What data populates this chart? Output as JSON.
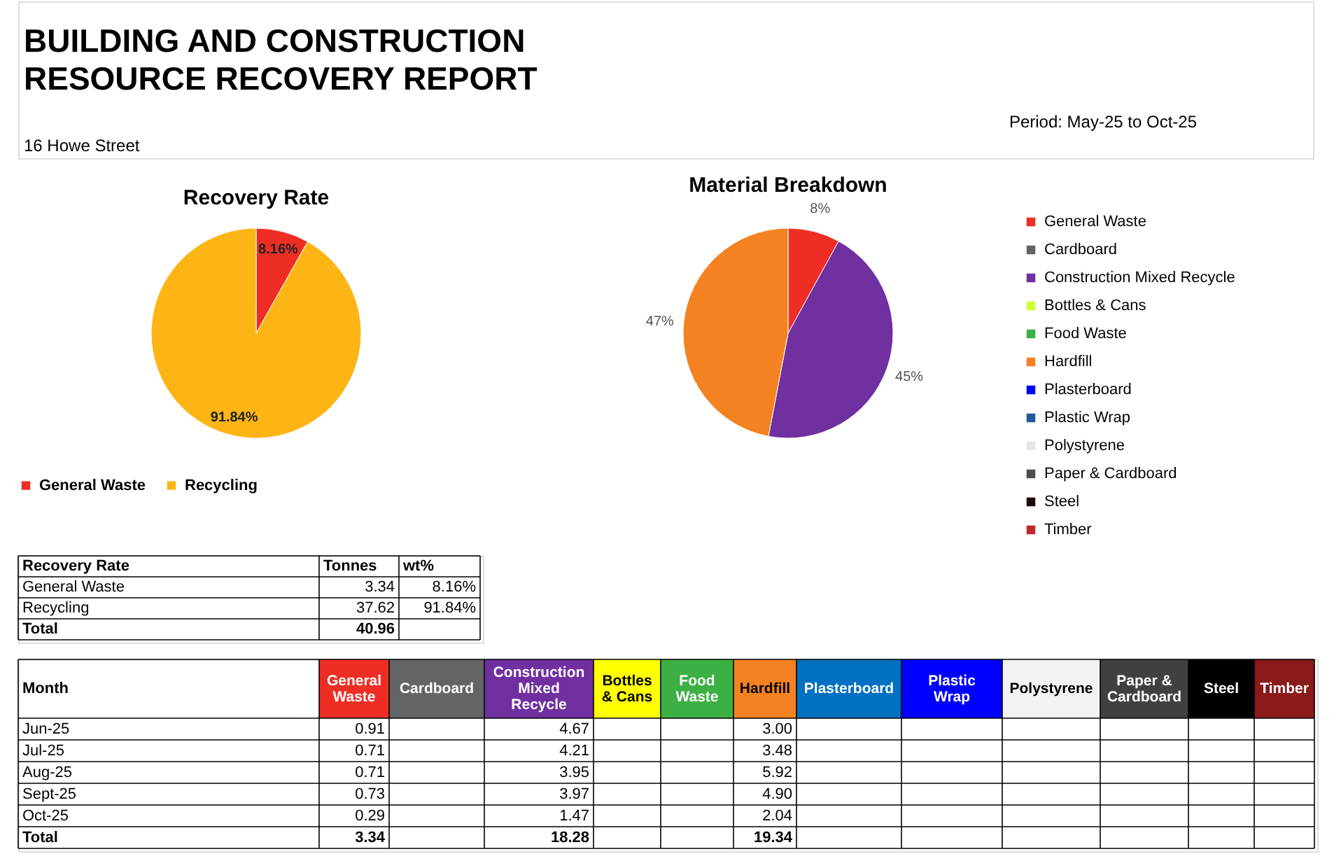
{
  "chart_data": [
    {
      "type": "other",
      "title": "BUILDING AND CONSTRUCTION RESOURCE RECOVERY REPORT",
      "annotations": [
        "16 Howe Street",
        "Period: May-25 to Oct-25"
      ]
    },
    {
      "type": "pie",
      "title": "Recovery Rate",
      "categories": [
        "General Waste",
        "Recycling"
      ],
      "values": [
        8.16,
        91.84
      ],
      "colors": [
        "#ee2e24",
        "#fdb515"
      ],
      "value_labels": [
        "8.16%",
        "91.84%"
      ],
      "legend": "bottom"
    },
    {
      "type": "pie",
      "title": "Material Breakdown",
      "categories": [
        "General Waste",
        "Cardboard",
        "Construction Mixed Recycle",
        "Bottles & Cans",
        "Food Waste",
        "Hardfill",
        "Plasterboard",
        "Plastic Wrap",
        "Polystyrene",
        "Paper & Cardboard",
        "Steel",
        "Timber"
      ],
      "values": [
        8,
        0,
        45,
        0,
        0,
        47,
        0,
        0,
        0,
        0,
        0,
        0
      ],
      "colors": [
        "#ee2e24",
        "#636466",
        "#7030a0",
        "#ccff33",
        "#3cb043",
        "#f58220",
        "#0000ff",
        "#1f5c99",
        "#e6e6e6",
        "#4d4d4d",
        "#1a0a00",
        "#c0282d"
      ],
      "value_labels": [
        "8%",
        null,
        "45%",
        null,
        null,
        "47%",
        null,
        null,
        null,
        null,
        null,
        null
      ],
      "legend": "right"
    },
    {
      "type": "other",
      "ylabel": "Recovery Rate",
      "categories": [
        "Tonnes",
        "wt%"
      ],
      "y_categories": [
        "General Waste",
        "Recycling",
        "Total"
      ],
      "cell_labels": [
        [
          "3.34",
          "8.16%"
        ],
        [
          "37.62",
          "91.84%"
        ],
        [
          "40.96",
          null
        ]
      ]
    },
    {
      "type": "other",
      "ylabel": "Month",
      "categories": [
        "General Waste",
        "Cardboard",
        "Construction Mixed Recycle",
        "Bottles & Cans",
        "Food Waste",
        "Hardfill",
        "Plasterboard",
        "Plastic Wrap",
        "Polystyrene",
        "Paper & Cardboard",
        "Steel",
        "Timber"
      ],
      "colors": [
        "#ee2e24",
        "#636466",
        "#7030a0",
        "#ffff00",
        "#3cb043",
        "#f58220",
        "#0070c0",
        "#0000ff",
        "#f2f2f2",
        "#404040",
        "#000000",
        "#8b1a1a"
      ],
      "y_categories": [
        "Jun-25",
        "Jul-25",
        "Aug-25",
        "Sept-25",
        "Oct-25",
        "Total"
      ],
      "cell_labels": [
        [
          "0.91",
          null,
          "4.67",
          null,
          null,
          "3.00",
          null,
          null,
          null,
          null,
          null,
          null
        ],
        [
          "0.71",
          null,
          "4.21",
          null,
          null,
          "3.48",
          null,
          null,
          null,
          null,
          null,
          null
        ],
        [
          "0.71",
          null,
          "3.95",
          null,
          null,
          "5.92",
          null,
          null,
          null,
          null,
          null,
          null
        ],
        [
          "0.73",
          null,
          "3.97",
          null,
          null,
          "4.90",
          null,
          null,
          null,
          null,
          null,
          null
        ],
        [
          "0.29",
          null,
          "1.47",
          null,
          null,
          "2.04",
          null,
          null,
          null,
          null,
          null,
          null
        ],
        [
          "3.34",
          null,
          "18.28",
          null,
          null,
          "19.34",
          null,
          null,
          null,
          null,
          null,
          null
        ]
      ]
    }
  ]
}
